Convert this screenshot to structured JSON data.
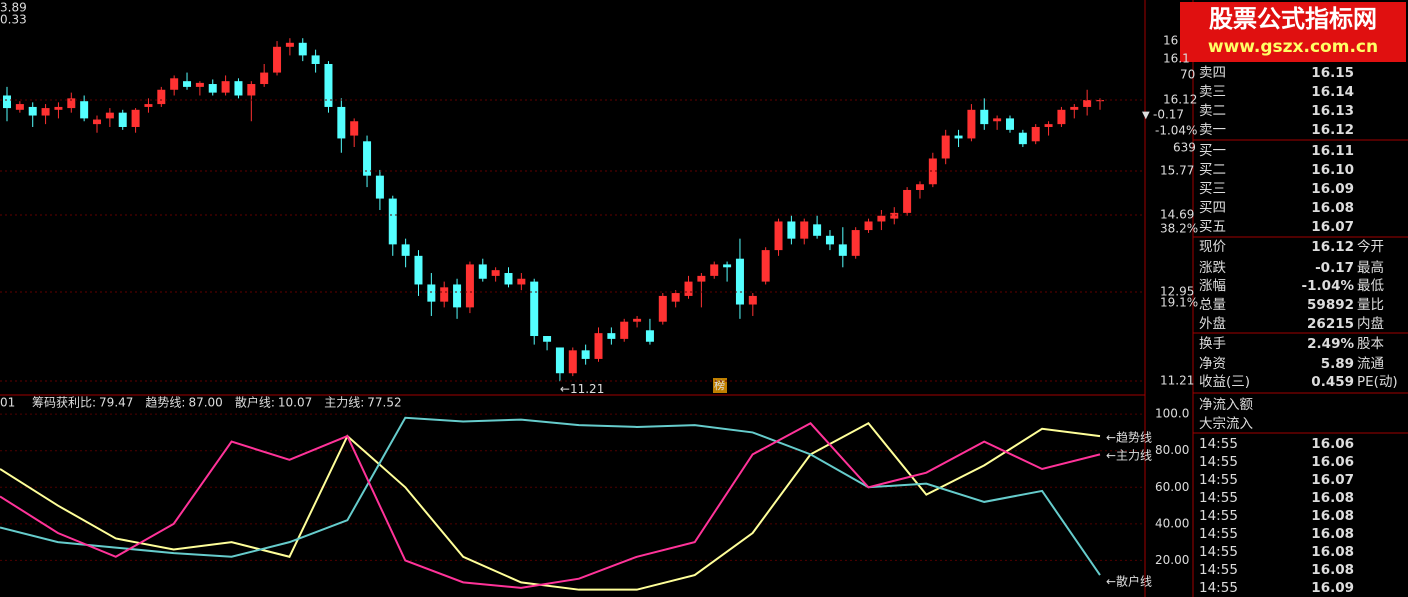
{
  "header": {
    "top_left": [
      "3.89",
      "0.33"
    ]
  },
  "watermark": {
    "title": "股票公式指标网",
    "url": "www.gszx.com.cn"
  },
  "kline": {
    "ylim": [
      10.97,
      17.78
    ],
    "candles": [
      [
        16.2,
        16.35,
        15.75,
        15.98
      ],
      [
        15.95,
        16.1,
        15.9,
        16.05
      ],
      [
        16.0,
        16.08,
        15.65,
        15.85
      ],
      [
        15.85,
        16.05,
        15.7,
        15.98
      ],
      [
        15.95,
        16.08,
        15.8,
        16.0
      ],
      [
        15.98,
        16.25,
        15.9,
        16.15
      ],
      [
        16.1,
        16.2,
        15.75,
        15.8
      ],
      [
        15.7,
        15.85,
        15.55,
        15.78
      ],
      [
        15.8,
        15.98,
        15.65,
        15.9
      ],
      [
        15.9,
        15.95,
        15.6,
        15.65
      ],
      [
        15.65,
        15.98,
        15.55,
        15.95
      ],
      [
        16.0,
        16.15,
        15.9,
        16.05
      ],
      [
        16.05,
        16.35,
        16.0,
        16.3
      ],
      [
        16.3,
        16.55,
        16.2,
        16.5
      ],
      [
        16.45,
        16.6,
        16.3,
        16.35
      ],
      [
        16.35,
        16.45,
        16.2,
        16.42
      ],
      [
        16.4,
        16.48,
        16.2,
        16.25
      ],
      [
        16.25,
        16.55,
        16.2,
        16.45
      ],
      [
        16.45,
        16.5,
        16.15,
        16.2
      ],
      [
        16.2,
        16.45,
        15.75,
        16.4
      ],
      [
        16.4,
        16.75,
        16.35,
        16.6
      ],
      [
        16.6,
        17.15,
        16.55,
        17.05
      ],
      [
        17.05,
        17.2,
        16.9,
        17.12
      ],
      [
        17.12,
        17.2,
        16.8,
        16.9
      ],
      [
        16.9,
        17.0,
        16.6,
        16.75
      ],
      [
        16.75,
        16.8,
        15.9,
        16.0
      ],
      [
        16.0,
        16.15,
        15.2,
        15.45
      ],
      [
        15.5,
        15.8,
        15.3,
        15.75
      ],
      [
        15.4,
        15.5,
        14.6,
        14.8
      ],
      [
        14.8,
        14.9,
        14.2,
        14.4
      ],
      [
        14.4,
        14.45,
        13.4,
        13.6
      ],
      [
        13.6,
        13.7,
        13.2,
        13.4
      ],
      [
        13.4,
        13.5,
        12.7,
        12.9
      ],
      [
        12.9,
        13.1,
        12.35,
        12.6
      ],
      [
        12.6,
        12.95,
        12.5,
        12.85
      ],
      [
        12.9,
        13.0,
        12.3,
        12.5
      ],
      [
        12.5,
        13.3,
        12.4,
        13.25
      ],
      [
        13.25,
        13.35,
        12.95,
        13.0
      ],
      [
        13.05,
        13.2,
        12.95,
        13.15
      ],
      [
        13.1,
        13.2,
        12.85,
        12.9
      ],
      [
        12.9,
        13.1,
        12.8,
        13.0
      ],
      [
        12.95,
        13.0,
        11.85,
        12.0
      ],
      [
        12.0,
        12.0,
        11.75,
        11.9
      ],
      [
        11.8,
        11.8,
        11.21,
        11.35
      ],
      [
        11.35,
        11.8,
        11.3,
        11.75
      ],
      [
        11.75,
        11.85,
        11.5,
        11.6
      ],
      [
        11.6,
        12.15,
        11.55,
        12.05
      ],
      [
        12.05,
        12.15,
        11.85,
        11.95
      ],
      [
        11.95,
        12.3,
        11.9,
        12.25
      ],
      [
        12.25,
        12.35,
        12.15,
        12.3
      ],
      [
        12.1,
        12.3,
        11.85,
        11.9
      ],
      [
        12.25,
        12.75,
        12.2,
        12.7
      ],
      [
        12.6,
        12.8,
        12.5,
        12.75
      ],
      [
        12.7,
        13.05,
        12.65,
        12.95
      ],
      [
        12.95,
        13.1,
        12.5,
        13.05
      ],
      [
        13.05,
        13.3,
        13.0,
        13.25
      ],
      [
        13.25,
        13.3,
        12.95,
        13.2
      ],
      [
        13.35,
        13.7,
        12.3,
        12.55
      ],
      [
        12.55,
        12.75,
        12.35,
        12.7
      ],
      [
        12.95,
        13.55,
        12.9,
        13.5
      ],
      [
        13.5,
        14.05,
        13.4,
        14.0
      ],
      [
        14.0,
        14.1,
        13.6,
        13.7
      ],
      [
        13.7,
        14.05,
        13.6,
        14.0
      ],
      [
        13.95,
        14.1,
        13.7,
        13.75
      ],
      [
        13.75,
        13.85,
        13.5,
        13.6
      ],
      [
        13.6,
        13.9,
        13.2,
        13.4
      ],
      [
        13.4,
        13.9,
        13.35,
        13.85
      ],
      [
        13.85,
        14.05,
        13.8,
        14.0
      ],
      [
        14.0,
        14.2,
        13.85,
        14.1
      ],
      [
        14.05,
        14.25,
        13.95,
        14.15
      ],
      [
        14.15,
        14.6,
        14.1,
        14.55
      ],
      [
        14.55,
        14.7,
        14.4,
        14.65
      ],
      [
        14.65,
        15.2,
        14.6,
        15.1
      ],
      [
        15.1,
        15.6,
        15.0,
        15.5
      ],
      [
        15.5,
        15.6,
        15.3,
        15.45
      ],
      [
        15.45,
        16.05,
        15.4,
        15.95
      ],
      [
        15.95,
        16.15,
        15.6,
        15.7
      ],
      [
        15.75,
        15.85,
        15.6,
        15.8
      ],
      [
        15.8,
        15.85,
        15.55,
        15.6
      ],
      [
        15.55,
        15.6,
        15.3,
        15.35
      ],
      [
        15.4,
        15.7,
        15.35,
        15.65
      ],
      [
        15.65,
        15.75,
        15.5,
        15.7
      ],
      [
        15.7,
        16.0,
        15.65,
        15.95
      ],
      [
        15.95,
        16.05,
        15.8,
        16.0
      ],
      [
        16.0,
        16.3,
        15.85,
        16.12
      ],
      [
        16.1,
        16.15,
        15.95,
        16.12
      ]
    ],
    "low_label": "←11.21",
    "badge": "榜"
  },
  "price_axis": {
    "labels": [
      "16",
      "16.1",
      "70",
      "16.12",
      "-0.17",
      "-1.04%",
      "639",
      "15.77",
      "14.69",
      "38.2%",
      "12.95",
      "19.1%",
      "11.21"
    ]
  },
  "indicator": {
    "left": "01",
    "legend": [
      {
        "name": "筹码获利比:",
        "value": "79.47"
      },
      {
        "name": "趋势线:",
        "value": "87.00"
      },
      {
        "name": "散户线:",
        "value": "10.07"
      },
      {
        "name": "主力线:",
        "value": "77.52"
      }
    ],
    "ylim": [
      0,
      105
    ],
    "yticks": [
      {
        "value": 100,
        "label": "100.0"
      },
      {
        "value": 80,
        "label": "80.00"
      },
      {
        "value": 60,
        "label": "60.00"
      },
      {
        "value": 40,
        "label": "40.00"
      },
      {
        "value": 20,
        "label": "20.00"
      }
    ],
    "series": [
      {
        "name": "趋势线",
        "color": "#ffff99",
        "values": [
          70,
          50,
          32,
          26,
          30,
          22,
          88,
          60,
          22,
          8,
          4,
          4,
          12,
          35,
          78,
          95,
          56,
          72,
          92,
          88
        ]
      },
      {
        "name": "散户线",
        "color": "#66cccc",
        "values": [
          38,
          30,
          27,
          24,
          22,
          30,
          42,
          98,
          96,
          97,
          94,
          93,
          94,
          90,
          78,
          60,
          62,
          52,
          58,
          12
        ]
      },
      {
        "name": "主力线",
        "color": "#ff3399",
        "values": [
          55,
          35,
          22,
          40,
          85,
          75,
          88,
          20,
          8,
          5,
          10,
          22,
          30,
          78,
          95,
          60,
          68,
          85,
          70,
          78
        ]
      }
    ],
    "side_labels": [
      "←趋势线",
      "←主力线",
      "←散户线"
    ]
  },
  "order_book": {
    "sells": [
      [
        "卖四",
        "16.15"
      ],
      [
        "卖三",
        "16.14"
      ],
      [
        "卖二",
        "16.13"
      ],
      [
        "卖一",
        "16.12"
      ]
    ],
    "buys": [
      [
        "买一",
        "16.11"
      ],
      [
        "买二",
        "16.10"
      ],
      [
        "买三",
        "16.09"
      ],
      [
        "买四",
        "16.08"
      ],
      [
        "买五",
        "16.07"
      ]
    ]
  },
  "quote": [
    [
      "现价",
      "16.12",
      "今开"
    ],
    [
      "涨跌",
      "-0.17",
      "最高"
    ],
    [
      "涨幅",
      "-1.04%",
      "最低"
    ],
    [
      "总量",
      "59892",
      "量比"
    ],
    [
      "外盘",
      "26215",
      "内盘"
    ],
    [
      "换手",
      "2.49%",
      "股本"
    ],
    [
      "净资",
      "5.89",
      "流通"
    ],
    [
      "收益(三)",
      "0.459",
      "PE(动)"
    ]
  ],
  "flow": [
    "净流入额",
    "大宗流入"
  ],
  "ticks": [
    [
      "14:55",
      "16.06"
    ],
    [
      "14:55",
      "16.06"
    ],
    [
      "14:55",
      "16.07"
    ],
    [
      "14:55",
      "16.08"
    ],
    [
      "14:55",
      "16.08"
    ],
    [
      "14:55",
      "16.08"
    ],
    [
      "14:55",
      "16.08"
    ],
    [
      "14:55",
      "16.08"
    ],
    [
      "14:55",
      "16.09"
    ]
  ]
}
